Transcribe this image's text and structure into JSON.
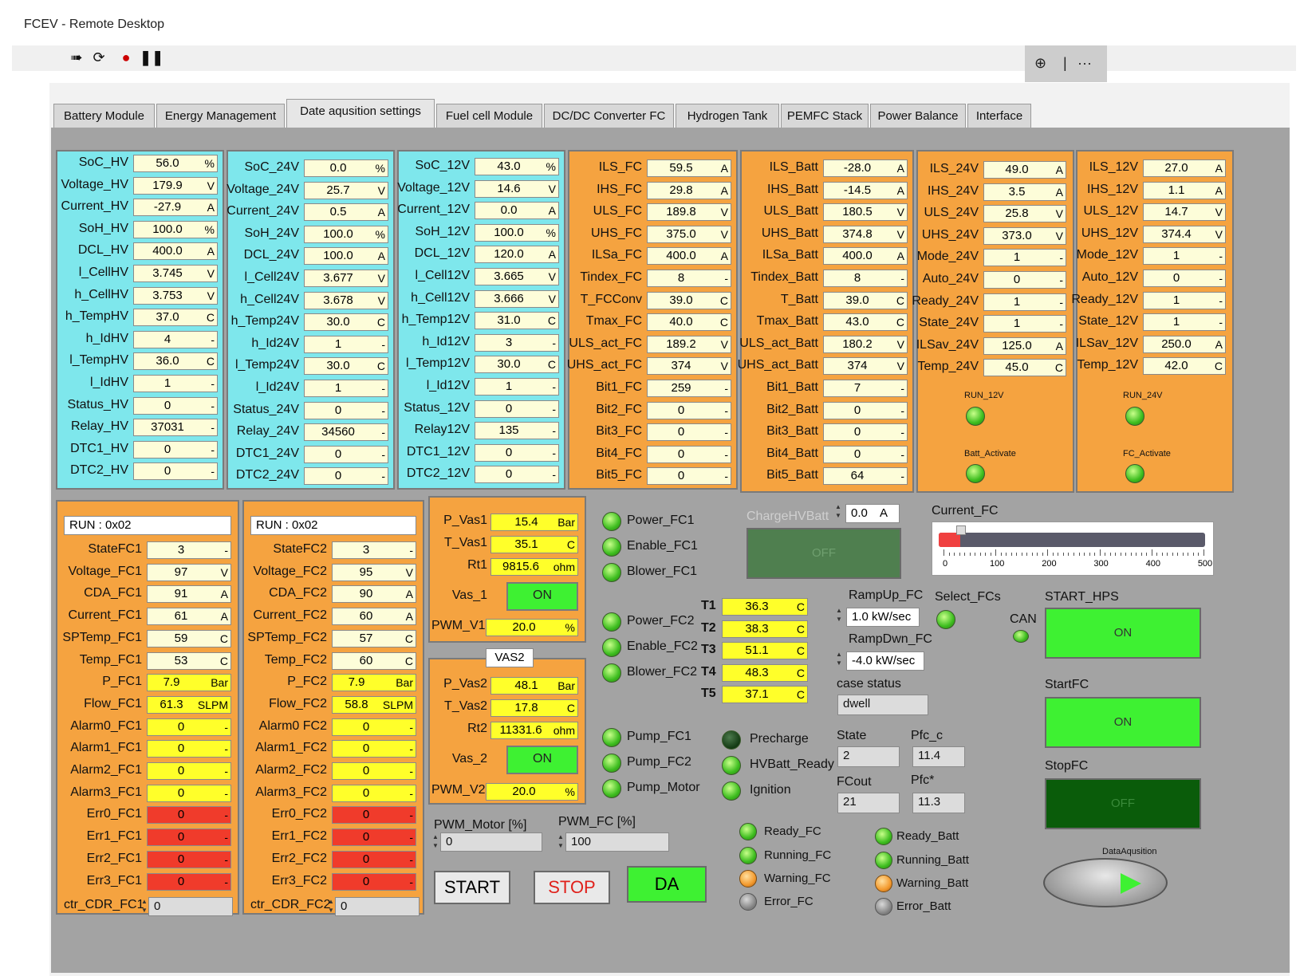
{
  "window": {
    "title": "FCEV - Remote Desktop"
  },
  "toolbar": {
    "icons": [
      "run-continuous-icon",
      "restart-icon",
      "abort-icon",
      "pause-icon"
    ],
    "zoom_icon": "zoom-icon",
    "separator": "|",
    "more": "···"
  },
  "tabs": [
    "Battery Module",
    "Energy Management",
    "Date aqusition settings",
    "Fuel cell Module",
    "DC/DC Converter FC",
    "Hydrogen Tank",
    "PEMFC Stack",
    "Power Balance",
    "Interface"
  ],
  "active_tab": "Date aqusition settings",
  "hv": [
    {
      "label": "SoC_HV",
      "value": "56.0",
      "unit": "%"
    },
    {
      "label": "Voltage_HV",
      "value": "179.9",
      "unit": "V"
    },
    {
      "label": "Current_HV",
      "value": "-27.9",
      "unit": "A"
    },
    {
      "label": "SoH_HV",
      "value": "100.0",
      "unit": "%"
    },
    {
      "label": "DCL_HV",
      "value": "400.0",
      "unit": "A"
    },
    {
      "label": "l_CellHV",
      "value": "3.745",
      "unit": "V"
    },
    {
      "label": "h_CellHV",
      "value": "3.753",
      "unit": "V"
    },
    {
      "label": "h_TempHV",
      "value": "37.0",
      "unit": "C"
    },
    {
      "label": "h_IdHV",
      "value": "4",
      "unit": "-"
    },
    {
      "label": "l_TempHV",
      "value": "36.0",
      "unit": "C"
    },
    {
      "label": "l_IdHV",
      "value": "1",
      "unit": "-"
    },
    {
      "label": "Status_HV",
      "value": "0",
      "unit": "-"
    },
    {
      "label": "Relay_HV",
      "value": "37031",
      "unit": "-"
    },
    {
      "label": "DTC1_HV",
      "value": "0",
      "unit": "-"
    },
    {
      "label": "DTC2_HV",
      "value": "0",
      "unit": "-"
    }
  ],
  "b24": [
    {
      "label": "SoC_24V",
      "value": "0.0",
      "unit": "%"
    },
    {
      "label": "Voltage_24V",
      "value": "25.7",
      "unit": "V"
    },
    {
      "label": "Current_24V",
      "value": "0.5",
      "unit": "A"
    },
    {
      "label": "SoH_24V",
      "value": "100.0",
      "unit": "%"
    },
    {
      "label": "DCL_24V",
      "value": "100.0",
      "unit": "A"
    },
    {
      "label": "l_Cell24V",
      "value": "3.677",
      "unit": "V"
    },
    {
      "label": "h_Cell24V",
      "value": "3.678",
      "unit": "V"
    },
    {
      "label": "h_Temp24V",
      "value": "30.0",
      "unit": "C"
    },
    {
      "label": "h_Id24V",
      "value": "1",
      "unit": "-"
    },
    {
      "label": "l_Temp24V",
      "value": "30.0",
      "unit": "C"
    },
    {
      "label": "l_Id24V",
      "value": "1",
      "unit": "-"
    },
    {
      "label": "Status_24V",
      "value": "0",
      "unit": "-"
    },
    {
      "label": "Relay_24V",
      "value": "34560",
      "unit": "-"
    },
    {
      "label": "DTC1_24V",
      "value": "0",
      "unit": "-"
    },
    {
      "label": "DTC2_24V",
      "value": "0",
      "unit": "-"
    }
  ],
  "b12": [
    {
      "label": "SoC_12V",
      "value": "43.0",
      "unit": "%"
    },
    {
      "label": "Voltage_12V",
      "value": "14.6",
      "unit": "V"
    },
    {
      "label": "Current_12V",
      "value": "0.0",
      "unit": "A"
    },
    {
      "label": "SoH_12V",
      "value": "100.0",
      "unit": "%"
    },
    {
      "label": "DCL_12V",
      "value": "120.0",
      "unit": "A"
    },
    {
      "label": "l_Cell12V",
      "value": "3.665",
      "unit": "V"
    },
    {
      "label": "h_Cell12V",
      "value": "3.666",
      "unit": "V"
    },
    {
      "label": "h_Temp12V",
      "value": "31.0",
      "unit": "C"
    },
    {
      "label": "h_Id12V",
      "value": "3",
      "unit": "-"
    },
    {
      "label": "l_Temp12V",
      "value": "30.0",
      "unit": "C"
    },
    {
      "label": "l_Id12V",
      "value": "1",
      "unit": "-"
    },
    {
      "label": "Status_12V",
      "value": "0",
      "unit": "-"
    },
    {
      "label": "Relay12V",
      "value": "135",
      "unit": "-"
    },
    {
      "label": "DTC1_12V",
      "value": "0",
      "unit": "-"
    },
    {
      "label": "DTC2_12V",
      "value": "0",
      "unit": "-"
    }
  ],
  "fc": [
    {
      "label": "ILS_FC",
      "value": "59.5",
      "unit": "A"
    },
    {
      "label": "IHS_FC",
      "value": "29.8",
      "unit": "A"
    },
    {
      "label": "ULS_FC",
      "value": "189.8",
      "unit": "V"
    },
    {
      "label": "UHS_FC",
      "value": "375.0",
      "unit": "V"
    },
    {
      "label": "ILSa_FC",
      "value": "400.0",
      "unit": "A"
    },
    {
      "label": "Tindex_FC",
      "value": "8",
      "unit": "-"
    },
    {
      "label": "T_FCConv",
      "value": "39.0",
      "unit": "C"
    },
    {
      "label": "Tmax_FC",
      "value": "40.0",
      "unit": "C"
    },
    {
      "label": "ULS_act_FC",
      "value": "189.2",
      "unit": "V"
    },
    {
      "label": "UHS_act_FC",
      "value": "374",
      "unit": "V"
    },
    {
      "label": "Bit1_FC",
      "value": "259",
      "unit": "-"
    },
    {
      "label": "Bit2_FC",
      "value": "0",
      "unit": "-"
    },
    {
      "label": "Bit3_FC",
      "value": "0",
      "unit": "-"
    },
    {
      "label": "Bit4_FC",
      "value": "0",
      "unit": "-"
    },
    {
      "label": "Bit5_FC",
      "value": "0",
      "unit": "-"
    }
  ],
  "batt": [
    {
      "label": "ILS_Batt",
      "value": "-28.0",
      "unit": "A"
    },
    {
      "label": "IHS_Batt",
      "value": "-14.5",
      "unit": "A"
    },
    {
      "label": "ULS_Batt",
      "value": "180.5",
      "unit": "V"
    },
    {
      "label": "UHS_Batt",
      "value": "374.8",
      "unit": "V"
    },
    {
      "label": "ILSa_Batt",
      "value": "400.0",
      "unit": "A"
    },
    {
      "label": "Tindex_Batt",
      "value": "8",
      "unit": "-"
    },
    {
      "label": "T_Batt",
      "value": "39.0",
      "unit": "C"
    },
    {
      "label": "Tmax_Batt",
      "value": "43.0",
      "unit": "C"
    },
    {
      "label": "ULS_act_Batt",
      "value": "180.2",
      "unit": "V"
    },
    {
      "label": "UHS_act_Batt",
      "value": "374",
      "unit": "V"
    },
    {
      "label": "Bit1_Batt",
      "value": "7",
      "unit": "-"
    },
    {
      "label": "Bit2_Batt",
      "value": "0",
      "unit": "-"
    },
    {
      "label": "Bit3_Batt",
      "value": "0",
      "unit": "-"
    },
    {
      "label": "Bit4_Batt",
      "value": "0",
      "unit": "-"
    },
    {
      "label": "Bit5_Batt",
      "value": "64",
      "unit": "-"
    }
  ],
  "c24": [
    {
      "label": "ILS_24V",
      "value": "49.0",
      "unit": "A"
    },
    {
      "label": "IHS_24V",
      "value": "3.5",
      "unit": "A"
    },
    {
      "label": "ULS_24V",
      "value": "25.8",
      "unit": "V"
    },
    {
      "label": "UHS_24V",
      "value": "373.0",
      "unit": "V"
    },
    {
      "label": "Mode_24V",
      "value": "1",
      "unit": "-"
    },
    {
      "label": "Auto_24V",
      "value": "0",
      "unit": "-"
    },
    {
      "label": "Ready_24V",
      "value": "1",
      "unit": "-"
    },
    {
      "label": "State_24V",
      "value": "1",
      "unit": "-"
    },
    {
      "label": "ILSav_24V",
      "value": "125.0",
      "unit": "A"
    },
    {
      "label": "Temp_24V",
      "value": "45.0",
      "unit": "C"
    }
  ],
  "c12": [
    {
      "label": "ILS_12V",
      "value": "27.0",
      "unit": "A"
    },
    {
      "label": "IHS_12V",
      "value": "1.1",
      "unit": "A"
    },
    {
      "label": "ULS_12V",
      "value": "14.7",
      "unit": "V"
    },
    {
      "label": "UHS_12V",
      "value": "374.4",
      "unit": "V"
    },
    {
      "label": "Mode_12V",
      "value": "1",
      "unit": "-"
    },
    {
      "label": "Auto_12V",
      "value": "0",
      "unit": "-"
    },
    {
      "label": "Ready_12V",
      "value": "1",
      "unit": "-"
    },
    {
      "label": "State_12V",
      "value": "1",
      "unit": "-"
    },
    {
      "label": "ILSav_12V",
      "value": "250.0",
      "unit": "A"
    },
    {
      "label": "Temp_12V",
      "value": "42.0",
      "unit": "C"
    }
  ],
  "leds_top": {
    "run12": "RUN_12V",
    "batt_activate": "Batt_Activate",
    "run24": "RUN_24V",
    "fc_activate": "FC_Activate"
  },
  "fc1": {
    "run": "RUN : 0x02",
    "rows": [
      {
        "label": "StateFC1",
        "value": "3",
        "unit": "-",
        "style": "pale"
      },
      {
        "label": "Voltage_FC1",
        "value": "97",
        "unit": "V",
        "style": "pale"
      },
      {
        "label": "CDA_FC1",
        "value": "91",
        "unit": "A",
        "style": "pale"
      },
      {
        "label": "Current_FC1",
        "value": "61",
        "unit": "A",
        "style": "pale"
      },
      {
        "label": "SPTemp_FC1",
        "value": "59",
        "unit": "C",
        "style": "pale"
      },
      {
        "label": "Temp_FC1",
        "value": "53",
        "unit": "C",
        "style": "pale"
      },
      {
        "label": "P_FC1",
        "value": "7.9",
        "unit": "Bar",
        "style": "yel"
      },
      {
        "label": "Flow_FC1",
        "value": "61.3",
        "unit": "SLPM",
        "style": "yel"
      },
      {
        "label": "Alarm0_FC1",
        "value": "0",
        "unit": "-",
        "style": "yel"
      },
      {
        "label": "Alarm1_FC1",
        "value": "0",
        "unit": "-",
        "style": "yel"
      },
      {
        "label": "Alarm2_FC1",
        "value": "0",
        "unit": "-",
        "style": "yel"
      },
      {
        "label": "Alarm3_FC1",
        "value": "0",
        "unit": "-",
        "style": "yel"
      },
      {
        "label": "Err0_FC1",
        "value": "0",
        "unit": "-",
        "style": "red"
      },
      {
        "label": "Err1_FC1",
        "value": "0",
        "unit": "-",
        "style": "red"
      },
      {
        "label": "Err2_FC1",
        "value": "0",
        "unit": "-",
        "style": "red"
      },
      {
        "label": "Err3_FC1",
        "value": "0",
        "unit": "-",
        "style": "red"
      }
    ],
    "ctr_label": "ctr_CDR_FC1",
    "ctr_value": "0"
  },
  "fc2": {
    "run": "RUN : 0x02",
    "rows": [
      {
        "label": "StateFC2",
        "value": "3",
        "unit": "-",
        "style": "pale"
      },
      {
        "label": "Voltage_FC2",
        "value": "95",
        "unit": "V",
        "style": "pale"
      },
      {
        "label": "CDA_FC2",
        "value": "90",
        "unit": "A",
        "style": "pale"
      },
      {
        "label": "Current_FC2",
        "value": "60",
        "unit": "A",
        "style": "pale"
      },
      {
        "label": "SPTemp_FC2",
        "value": "57",
        "unit": "C",
        "style": "pale"
      },
      {
        "label": "Temp_FC2",
        "value": "60",
        "unit": "C",
        "style": "pale"
      },
      {
        "label": "P_FC2",
        "value": "7.9",
        "unit": "Bar",
        "style": "yel"
      },
      {
        "label": "Flow_FC2",
        "value": "58.8",
        "unit": "SLPM",
        "style": "yel"
      },
      {
        "label": "Alarm0 FC2",
        "value": "0",
        "unit": "-",
        "style": "yel"
      },
      {
        "label": "Alarm1_FC2",
        "value": "0",
        "unit": "-",
        "style": "yel"
      },
      {
        "label": "Alarm2_FC2",
        "value": "0",
        "unit": "-",
        "style": "yel"
      },
      {
        "label": "Alarm3_FC2",
        "value": "0",
        "unit": "-",
        "style": "yel"
      },
      {
        "label": "Err0_FC2",
        "value": "0",
        "unit": "-",
        "style": "red"
      },
      {
        "label": "Err1_FC2",
        "value": "0",
        "unit": "-",
        "style": "red"
      },
      {
        "label": "Err2_FC2",
        "value": "0",
        "unit": "-",
        "style": "red"
      },
      {
        "label": "Err3_FC2",
        "value": "0",
        "unit": "-",
        "style": "red"
      }
    ],
    "ctr_label": "ctr_CDR_FC2",
    "ctr_value": "0"
  },
  "vas1": {
    "p_label": "P_Vas1",
    "p_value": "15.4",
    "p_unit": "Bar",
    "t_label": "T_Vas1",
    "t_value": "35.1",
    "t_unit": "C",
    "rt_label": "Rt1",
    "rt_value": "9815.6",
    "rt_unit": "ohm",
    "vas_label": "Vas_1",
    "vas_state": "ON",
    "pwm_label": "PWM_V1",
    "pwm_value": "20.0",
    "pwm_unit": "%"
  },
  "vas2": {
    "title": "VAS2",
    "p_label": "P_Vas2",
    "p_value": "48.1",
    "p_unit": "Bar",
    "t_label": "T_Vas2",
    "t_value": "17.8",
    "t_unit": "C",
    "rt_label": "Rt2",
    "rt_value": "11331.6",
    "rt_unit": "ohm",
    "vas_label": "Vas_2",
    "vas_state": "ON",
    "pwm_label": "PWM_V2",
    "pwm_value": "20.0",
    "pwm_unit": "%"
  },
  "leds_mid": {
    "power_fc1": "Power_FC1",
    "enable_fc1": "Enable_FC1",
    "blower_fc1": "Blower_FC1",
    "power_fc2": "Power_FC2",
    "enable_fc2": "Enable_FC2",
    "blower_fc2": "Blower_FC2",
    "pump_fc1": "Pump_FC1",
    "pump_fc2": "Pump_FC2",
    "pump_motor": "Pump_Motor",
    "precharge": "Precharge",
    "hvbatt_ready": "HVBatt_Ready",
    "ignition": "Ignition"
  },
  "temps": [
    {
      "label": "T1",
      "value": "36.3",
      "unit": "C"
    },
    {
      "label": "T2",
      "value": "38.3",
      "unit": "C"
    },
    {
      "label": "T3",
      "value": "51.1",
      "unit": "C"
    },
    {
      "label": "T4",
      "value": "48.3",
      "unit": "C"
    },
    {
      "label": "T5",
      "value": "37.1",
      "unit": "C"
    }
  ],
  "charge": {
    "label": "ChargeHVBatt",
    "value": "0.0",
    "unit": "A",
    "button": "OFF"
  },
  "current_fc": {
    "label": "Current_FC",
    "value": 40,
    "max": 500,
    "ticks": [
      "0",
      "100",
      "200",
      "300",
      "400",
      "500"
    ]
  },
  "ramp": {
    "up_label": "RampUp_FC",
    "up_value": "1.0",
    "up_unit": "kW/sec",
    "dn_label": "RampDwn_FC",
    "dn_value": "-4.0",
    "dn_unit": "kW/sec"
  },
  "select_fcs": "Select_FCs",
  "can": "CAN",
  "case_status": {
    "label": "case status",
    "value": "dwell"
  },
  "state": {
    "label": "State",
    "value": "2"
  },
  "pfc_c": {
    "label": "Pfc_c",
    "value": "11.4"
  },
  "fcout": {
    "label": "FCout",
    "value": "21"
  },
  "pfc_star": {
    "label": "Pfc*",
    "value": "11.3"
  },
  "start_hps": {
    "label": "START_HPS",
    "state": "ON"
  },
  "startfc": {
    "label": "StartFC",
    "state": "ON"
  },
  "stopfc": {
    "label": "StopFC",
    "state": "OFF"
  },
  "pwm_motor": {
    "label": "PWM_Motor [%]",
    "value": "0"
  },
  "pwm_fc": {
    "label": "PWM_FC [%]",
    "value": "100"
  },
  "buttons": {
    "start": "START",
    "stop": "STOP",
    "da": "DA"
  },
  "status_fc": {
    "ready": "Ready_FC",
    "running": "Running_FC",
    "warning": "Warning_FC",
    "error": "Error_FC"
  },
  "status_batt": {
    "ready": "Ready_Batt",
    "running": "Running_Batt",
    "warning": "Warning_Batt",
    "error": "Error_Batt"
  },
  "data_aquisition": "DataAqusition",
  "colors": {
    "panel": "#a3a3a3",
    "cyan": "#7ee7ec",
    "orange": "#f5a340",
    "yellow": "#ffff2a",
    "red": "#f03b2b",
    "green_on": "#3ef132",
    "dark_green": "#0a5c0a"
  }
}
